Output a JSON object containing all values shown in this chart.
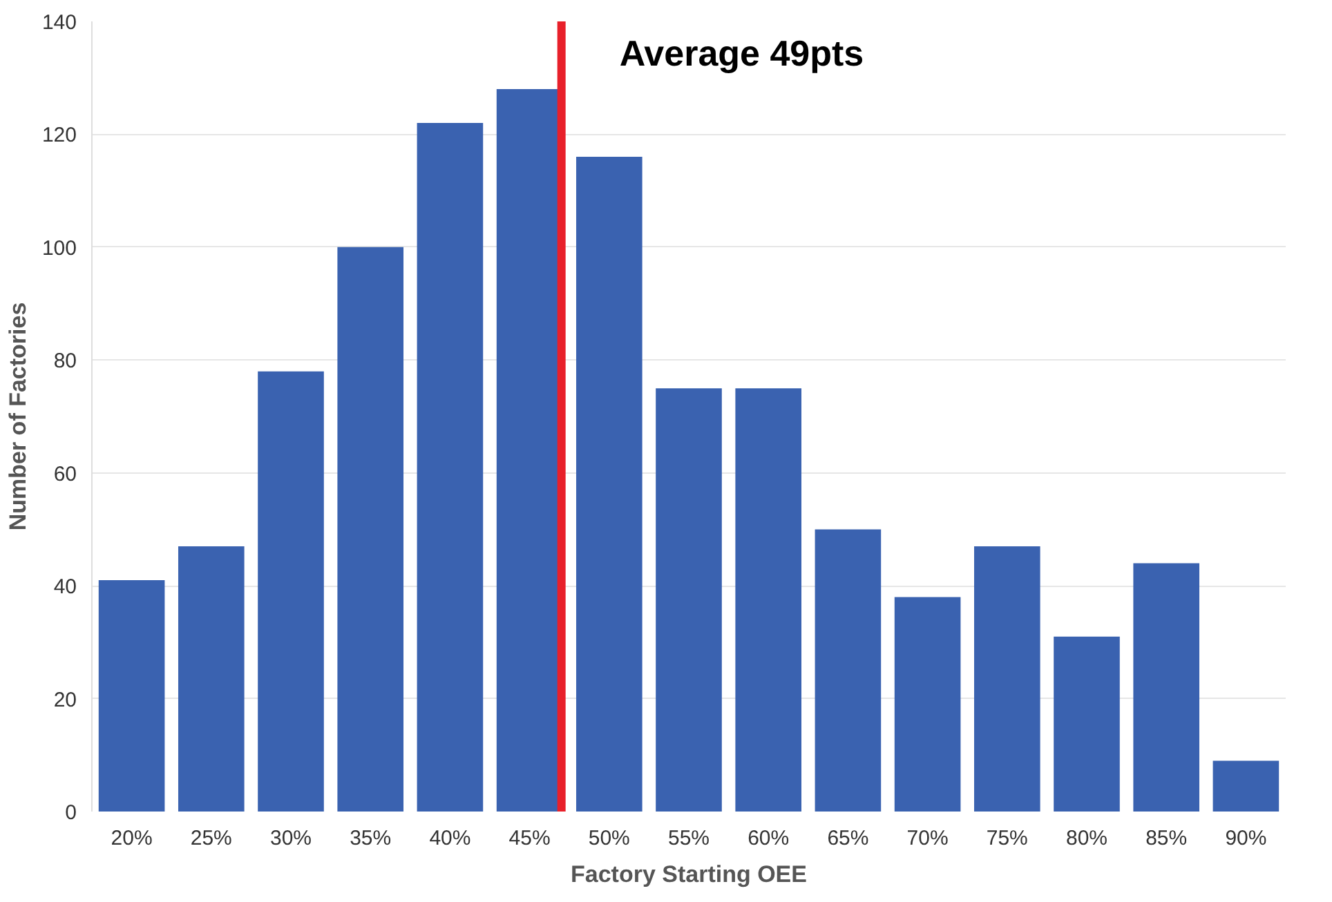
{
  "chart_data": {
    "type": "bar",
    "xlabel": "Factory Starting OEE",
    "ylabel": "Number of Factories",
    "x": [
      20,
      25,
      30,
      35,
      40,
      45,
      50,
      55,
      60,
      65,
      70,
      75,
      80,
      85,
      90
    ],
    "values": [
      41,
      47,
      78,
      100,
      122,
      128,
      116,
      75,
      75,
      50,
      38,
      47,
      31,
      44,
      9
    ],
    "color": "#3a62b0",
    "xlim": [
      17.5,
      92.5
    ],
    "xticks": [
      {
        "value": 20,
        "label": "20%"
      },
      {
        "value": 25,
        "label": "25%"
      },
      {
        "value": 30,
        "label": "30%"
      },
      {
        "value": 35,
        "label": "35%"
      },
      {
        "value": 40,
        "label": "40%"
      },
      {
        "value": 45,
        "label": "45%"
      },
      {
        "value": 50,
        "label": "50%"
      },
      {
        "value": 55,
        "label": "55%"
      },
      {
        "value": 60,
        "label": "60%"
      },
      {
        "value": 65,
        "label": "65%"
      },
      {
        "value": 70,
        "label": "70%"
      },
      {
        "value": 75,
        "label": "75%"
      },
      {
        "value": 80,
        "label": "80%"
      },
      {
        "value": 85,
        "label": "85%"
      },
      {
        "value": 90,
        "label": "90%"
      }
    ],
    "ylim": [
      0,
      140
    ],
    "yticks": [
      0,
      20,
      40,
      60,
      80,
      100,
      120,
      140
    ],
    "grid": "y",
    "ref_lines": [
      {
        "axis": "x",
        "value": 47,
        "label": "Average 49pts",
        "color": "#e8202a"
      }
    ]
  }
}
